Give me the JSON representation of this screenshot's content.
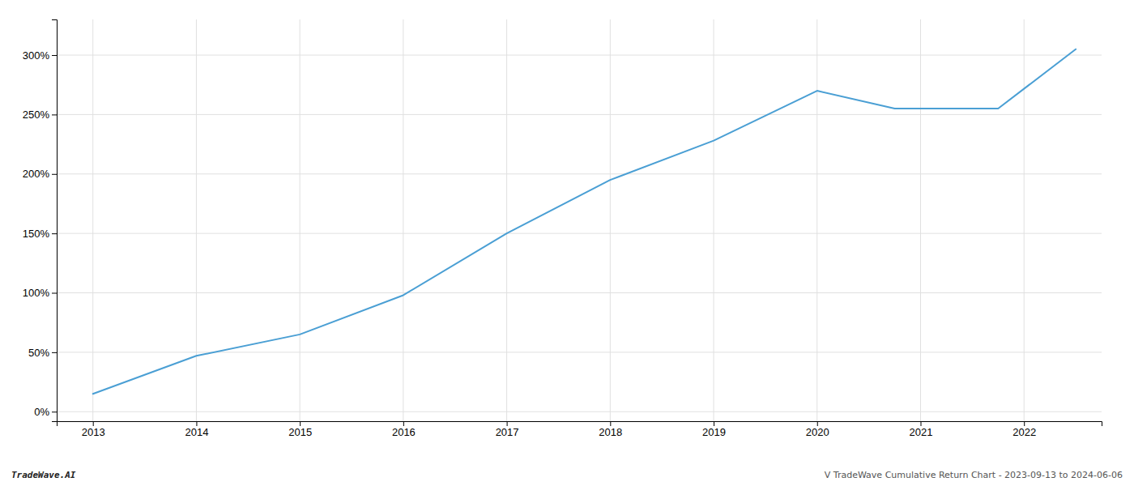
{
  "chart_data": {
    "type": "line",
    "x": [
      2013,
      2014,
      2015,
      2016,
      2017,
      2018,
      2019,
      2020,
      2020.75,
      2021,
      2021.75,
      2022.5
    ],
    "values": [
      15,
      47,
      65,
      98,
      150,
      195,
      228,
      270,
      255,
      255,
      255,
      305
    ],
    "color": "#4a9fd4",
    "xlim": [
      2012.65,
      2022.75
    ],
    "xticks": [
      2013,
      2014,
      2015,
      2016,
      2017,
      2018,
      2019,
      2020,
      2021,
      2022
    ],
    "ylim": [
      -8,
      330
    ],
    "yticks": [
      {
        "value": 0,
        "label": "0%"
      },
      {
        "value": 50,
        "label": "50%"
      },
      {
        "value": 100,
        "label": "100%"
      },
      {
        "value": 150,
        "label": "150%"
      },
      {
        "value": 200,
        "label": "200%"
      },
      {
        "value": 250,
        "label": "250%"
      },
      {
        "value": 300,
        "label": "300%"
      }
    ],
    "grid": true,
    "annotations": [
      "TradeWave.AI",
      "V TradeWave Cumulative Return Chart - 2023-09-13 to 2024-06-06"
    ]
  }
}
